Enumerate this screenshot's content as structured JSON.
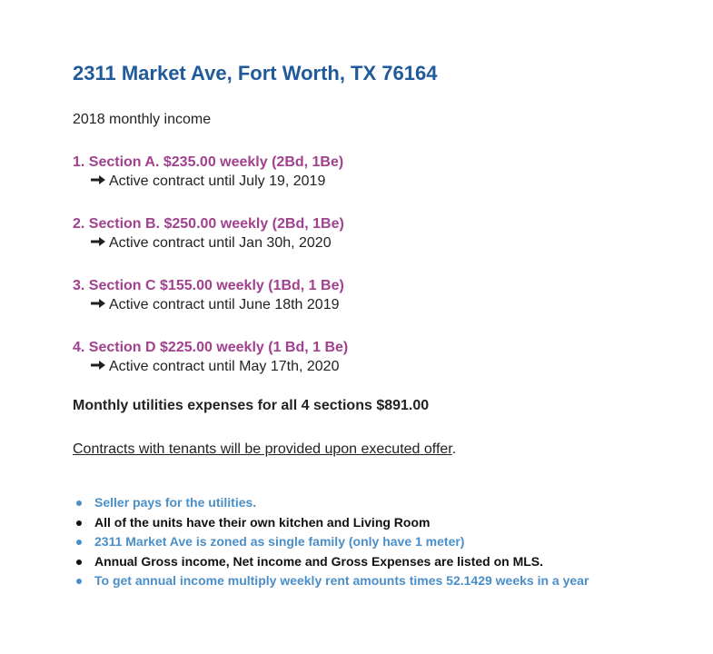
{
  "title": "2311 Market Ave, Fort Worth, TX 76164",
  "subtitle": "2018 monthly income",
  "sections": [
    {
      "heading": "1. Section A. $235.00 weekly (2Bd, 1Be)",
      "note": "Active contract until July 19, 2019"
    },
    {
      "heading": "2. Section B. $250.00 weekly (2Bd, 1Be)",
      "note": "Active contract until Jan 30h, 2020"
    },
    {
      "heading": "3. Section C $155.00 weekly (1Bd, 1 Be)",
      "note": "Active contract until June 18th 2019"
    },
    {
      "heading": "4. Section D $225.00 weekly (1 Bd, 1 Be)",
      "note": "Active contract until May 17th, 2020"
    }
  ],
  "expenses": "Monthly utilities expenses for all 4 sections $891.00",
  "contracts": {
    "text": "Contracts with tenants will be provided upon executed offer",
    "end": "."
  },
  "bullets": [
    {
      "text": "Seller pays for the utilities.",
      "color": "#4a8fc9"
    },
    {
      "text": "All of the units have their own kitchen and Living Room",
      "color": "#111111"
    },
    {
      "text": "2311 Market Ave is zoned as single family (only have 1 meter)",
      "color": "#4a8fc9"
    },
    {
      "text": "Annual Gross income, Net income and Gross Expenses are listed on MLS.",
      "color": "#111111"
    },
    {
      "text": "To get annual income multiply weekly rent amounts times 52.1429 weeks in a year",
      "color": "#4a8fc9"
    }
  ]
}
